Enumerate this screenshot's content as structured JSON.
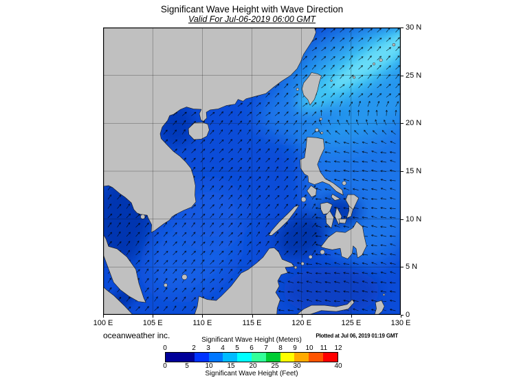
{
  "header": {
    "title": "Significant Wave Height with Wave Direction",
    "subtitle": "Valid For Jul-06-2019 06:00 GMT"
  },
  "map_axes": {
    "lon_ticks": [
      {
        "value": 100,
        "label": "100 E"
      },
      {
        "value": 105,
        "label": "105 E"
      },
      {
        "value": 110,
        "label": "110 E"
      },
      {
        "value": 115,
        "label": "115 E"
      },
      {
        "value": 120,
        "label": "120 E"
      },
      {
        "value": 125,
        "label": "125 E"
      },
      {
        "value": 130,
        "label": "130 E"
      }
    ],
    "lat_ticks": [
      {
        "value": 0,
        "label": "0"
      },
      {
        "value": 5,
        "label": "5 N"
      },
      {
        "value": 10,
        "label": "10 N"
      },
      {
        "value": 15,
        "label": "15 N"
      },
      {
        "value": 20,
        "label": "20 N"
      },
      {
        "value": 25,
        "label": "25 N"
      },
      {
        "value": 30,
        "label": "30 N"
      }
    ]
  },
  "colors": {
    "ocean_base": "#0b4cd8",
    "land": "#c0c0c0",
    "coastline": "#1a1a1a",
    "arrow": "#000000",
    "grid": "#111111",
    "frame": "#000000"
  },
  "footer": {
    "credit": "oceanweather inc.",
    "plotted": "Plotted at Jul 06, 2019 01:19 GMT"
  },
  "legend": {
    "meters_title": "Significant Wave Height (Meters)",
    "feet_title": "Significant Wave Height (Feet)",
    "meters_max": 12,
    "feet_per_meter": 3.2808,
    "meters_ticks": [
      {
        "value": 0,
        "label": "0"
      },
      {
        "value": 2,
        "label": "2"
      },
      {
        "value": 3,
        "label": "3"
      },
      {
        "value": 4,
        "label": "4"
      },
      {
        "value": 5,
        "label": "5"
      },
      {
        "value": 6,
        "label": "6"
      },
      {
        "value": 7,
        "label": "7"
      },
      {
        "value": 8,
        "label": "8"
      },
      {
        "value": 9,
        "label": "9"
      },
      {
        "value": 10,
        "label": "10"
      },
      {
        "value": 11,
        "label": "11"
      },
      {
        "value": 12,
        "label": "12"
      }
    ],
    "feet_ticks": [
      {
        "value": 0,
        "label": "0"
      },
      {
        "value": 5,
        "label": "5"
      },
      {
        "value": 10,
        "label": "10"
      },
      {
        "value": 15,
        "label": "15"
      },
      {
        "value": 20,
        "label": "20"
      },
      {
        "value": 25,
        "label": "25"
      },
      {
        "value": 30,
        "label": "30"
      },
      {
        "value": 40,
        "label": "40"
      }
    ],
    "segments": [
      {
        "from": 0,
        "to": 2,
        "color": "#000099"
      },
      {
        "from": 2,
        "to": 3,
        "color": "#0033ff"
      },
      {
        "from": 3,
        "to": 4,
        "color": "#0077ff"
      },
      {
        "from": 4,
        "to": 5,
        "color": "#00bbff"
      },
      {
        "from": 5,
        "to": 6,
        "color": "#00ffff"
      },
      {
        "from": 6,
        "to": 7,
        "color": "#33ff99"
      },
      {
        "from": 7,
        "to": 8,
        "color": "#00cc33"
      },
      {
        "from": 8,
        "to": 9,
        "color": "#ffff00"
      },
      {
        "from": 9,
        "to": 10,
        "color": "#ffaa00"
      },
      {
        "from": 10,
        "to": 11,
        "color": "#ff5500"
      },
      {
        "from": 11,
        "to": 12,
        "color": "#ff0000"
      }
    ]
  }
}
